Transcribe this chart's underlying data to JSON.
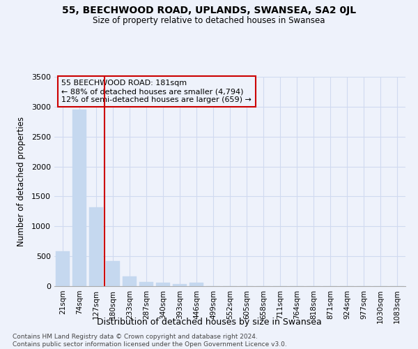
{
  "title": "55, BEECHWOOD ROAD, UPLANDS, SWANSEA, SA2 0JL",
  "subtitle": "Size of property relative to detached houses in Swansea",
  "xlabel": "Distribution of detached houses by size in Swansea",
  "ylabel": "Number of detached properties",
  "annotation_title": "55 BEECHWOOD ROAD: 181sqm",
  "annotation_line1": "← 88% of detached houses are smaller (4,794)",
  "annotation_line2": "12% of semi-detached houses are larger (659) →",
  "footer_line1": "Contains HM Land Registry data © Crown copyright and database right 2024.",
  "footer_line2": "Contains public sector information licensed under the Open Government Licence v3.0.",
  "bar_color": "#c5d8ef",
  "bar_edge_color": "#c5d8ef",
  "grid_color": "#d0daf0",
  "property_line_color": "#cc0000",
  "background_color": "#eef2fb",
  "categories": [
    "21sqm",
    "74sqm",
    "127sqm",
    "180sqm",
    "233sqm",
    "287sqm",
    "340sqm",
    "393sqm",
    "446sqm",
    "499sqm",
    "552sqm",
    "605sqm",
    "658sqm",
    "711sqm",
    "764sqm",
    "818sqm",
    "871sqm",
    "924sqm",
    "977sqm",
    "1030sqm",
    "1083sqm"
  ],
  "values": [
    580,
    2950,
    1320,
    420,
    160,
    75,
    55,
    30,
    55,
    0,
    0,
    0,
    0,
    0,
    0,
    0,
    0,
    0,
    0,
    0,
    0
  ],
  "property_line_index": 3,
  "ylim": [
    0,
    3500
  ],
  "yticks": [
    0,
    500,
    1000,
    1500,
    2000,
    2500,
    3000,
    3500
  ]
}
